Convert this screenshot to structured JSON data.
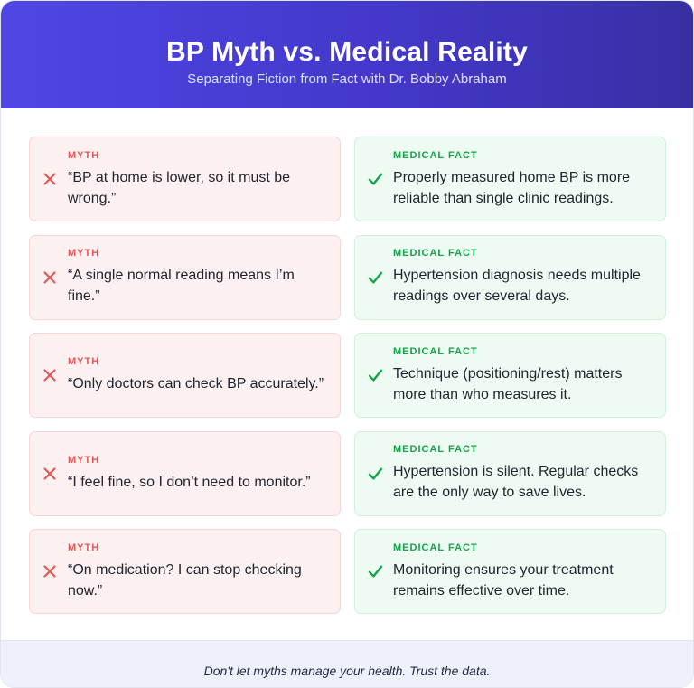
{
  "header": {
    "title": "BP Myth vs. Medical Reality",
    "subtitle": "Separating Fiction from Fact with Dr. Bobby Abraham"
  },
  "labels": {
    "myth": "MYTH",
    "fact": "MEDICAL FACT"
  },
  "icons": {
    "myth": "x-icon",
    "fact": "check-icon"
  },
  "colors": {
    "header_gradient_start": "#4f46e5",
    "header_gradient_end": "#3730a3",
    "myth_accent": "#e05a5a",
    "myth_background": "#fdf0f0",
    "fact_accent": "#16a34a",
    "fact_background": "#edfbf2"
  },
  "rows": [
    {
      "myth": "“BP at home is lower, so it must be wrong.”",
      "fact": "Properly measured home BP is more reliable than single clinic readings."
    },
    {
      "myth": "“A single normal reading means I’m fine.”",
      "fact": "Hypertension diagnosis needs multiple readings over several days."
    },
    {
      "myth": "“Only doctors can check BP accurately.”",
      "fact": "Technique (positioning/rest) matters more than who measures it."
    },
    {
      "myth": "“I feel fine, so I don’t need to monitor.”",
      "fact": "Hypertension is silent. Regular checks are the only way to save lives."
    },
    {
      "myth": "“On medication? I can stop checking now.”",
      "fact": "Monitoring ensures your treatment remains effective over time."
    }
  ],
  "footer": {
    "text": "Don't let myths manage your health. Trust the data."
  }
}
